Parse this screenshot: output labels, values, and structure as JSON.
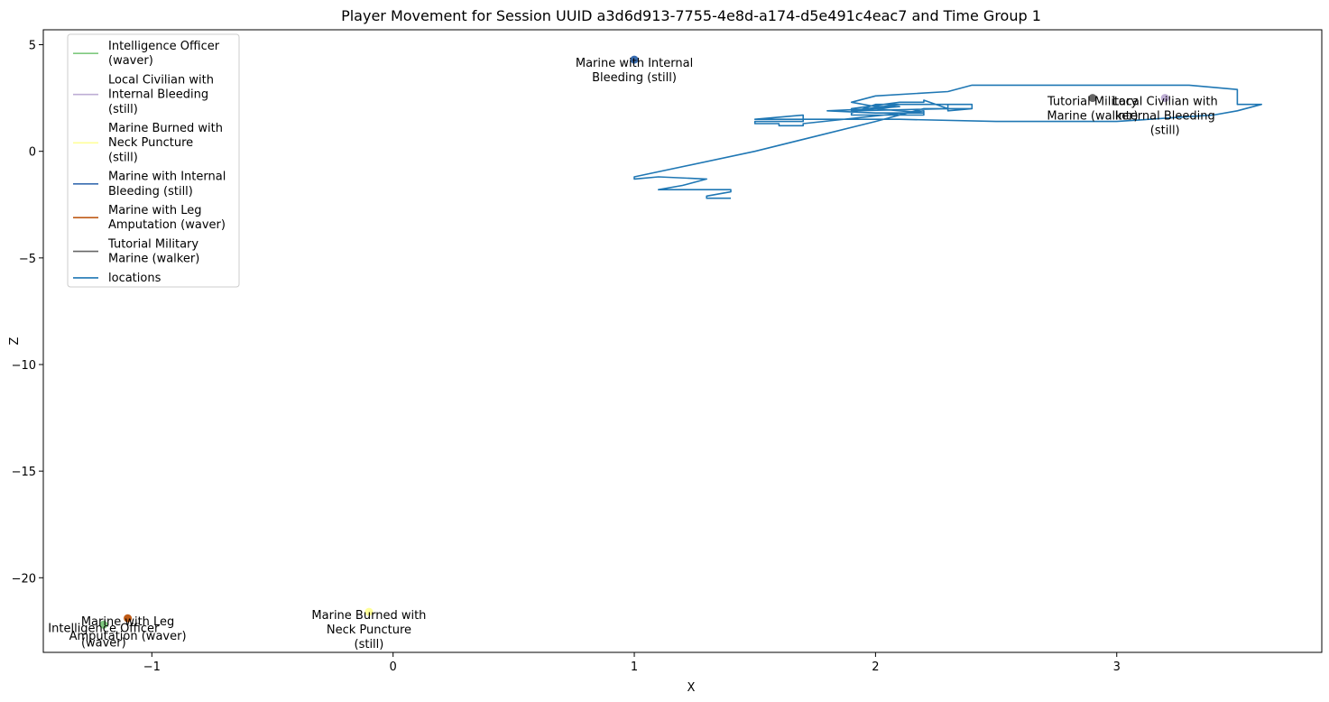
{
  "chart_data": {
    "type": "line",
    "title": "Player Movement for Session UUID a3d6d913-7755-4e8d-a174-d5e491c4eac7 and Time Group 1",
    "xlabel": "X",
    "ylabel": "Z",
    "xlim": [
      -1.45,
      3.85
    ],
    "ylim": [
      -23.5,
      5.7
    ],
    "xticks": [
      -1,
      0,
      1,
      2,
      3
    ],
    "yticks": [
      5,
      0,
      -5,
      -10,
      -15,
      -20
    ],
    "xtick_labels": [
      "−1",
      "0",
      "1",
      "2",
      "3"
    ],
    "ytick_labels": [
      "5",
      "0",
      "−5",
      "−10",
      "−15",
      "−20"
    ],
    "grid": false,
    "legend_position": "upper-left",
    "legend": [
      {
        "label": [
          "Intelligence Officer",
          "(waver)"
        ],
        "color": "#7fc97f"
      },
      {
        "label": [
          "Local Civilian with",
          "Internal Bleeding",
          "(still)"
        ],
        "color": "#beaed4"
      },
      {
        "label": [
          "Marine Burned with",
          "Neck Puncture",
          "(still)"
        ],
        "color": "#ffff99"
      },
      {
        "label": [
          "Marine with Internal",
          "Bleeding (still)"
        ],
        "color": "#386cb0"
      },
      {
        "label": [
          "Marine with Leg",
          "Amputation (waver)"
        ],
        "color": "#bf5b17"
      },
      {
        "label": [
          "Tutorial Military",
          "Marine (walker)"
        ],
        "color": "#666666"
      },
      {
        "label": [
          "locations"
        ],
        "color": "#1f77b4"
      }
    ],
    "points": [
      {
        "name": "Intelligence Officer (waver)",
        "x": -1.2,
        "y": -22.2,
        "color": "#7fc97f",
        "label": [
          "Intelligence Officer",
          "(waver)"
        ]
      },
      {
        "name": "Local Civilian with Internal Bleeding (still)",
        "x": 3.2,
        "y": 2.5,
        "color": "#beaed4",
        "label": [
          "Local Civilian with",
          "Internal Bleeding",
          "(still)"
        ]
      },
      {
        "name": "Marine Burned with Neck Puncture (still)",
        "x": -0.1,
        "y": -21.6,
        "color": "#ffff99",
        "label": [
          "Marine Burned with",
          "Neck Puncture",
          "(still)"
        ]
      },
      {
        "name": "Marine with Internal Bleeding (still)",
        "x": 1.0,
        "y": 4.3,
        "color": "#386cb0",
        "label": [
          "Marine with Internal",
          "Bleeding (still)"
        ]
      },
      {
        "name": "Marine with Leg Amputation (waver)",
        "x": -1.1,
        "y": -21.9,
        "color": "#bf5b17",
        "label": [
          "Marine with Leg",
          "Amputation (waver)"
        ]
      },
      {
        "name": "Tutorial Military Marine (walker)",
        "x": 2.9,
        "y": 2.5,
        "color": "#666666",
        "label": [
          "Tutorial Military",
          "Marine (walker)"
        ]
      }
    ],
    "series": [
      {
        "name": "locations",
        "color": "#1f77b4",
        "x": [
          1.4,
          1.3,
          1.3,
          1.4,
          1.4,
          1.1,
          1.2,
          1.3,
          1.1,
          1.0,
          1.0,
          1.0,
          1.5,
          2.0,
          2.1,
          2.2,
          2.4,
          2.4,
          2.1,
          1.9,
          1.9,
          2.1,
          2.2,
          2.2,
          2.3,
          2.3,
          2.4,
          2.4,
          2.0,
          1.9,
          1.9,
          2.2,
          2.2,
          2.0,
          1.8,
          2.0,
          2.2,
          2.2,
          1.7,
          1.7,
          1.6,
          1.6,
          1.5,
          1.5,
          1.7,
          1.7,
          1.5,
          1.6,
          1.6,
          1.7,
          1.9,
          2.1,
          2.5,
          3.0,
          3.4,
          3.5,
          3.6,
          3.5,
          3.5,
          3.3,
          2.4,
          2.3,
          2.0,
          1.9,
          2.0,
          2.1,
          1.9,
          2.3,
          2.3
        ],
        "y": [
          -2.2,
          -2.2,
          -2.1,
          -1.9,
          -1.8,
          -1.8,
          -1.6,
          -1.3,
          -1.2,
          -1.3,
          -1.3,
          -1.2,
          0.0,
          1.4,
          1.7,
          2.0,
          2.0,
          2.2,
          2.2,
          1.9,
          2.0,
          2.3,
          2.3,
          2.4,
          2.0,
          1.9,
          2.0,
          2.2,
          2.2,
          1.8,
          1.7,
          1.7,
          1.8,
          1.8,
          1.9,
          2.0,
          1.8,
          1.9,
          1.3,
          1.2,
          1.2,
          1.3,
          1.3,
          1.4,
          1.4,
          1.7,
          1.5,
          1.5,
          1.5,
          1.5,
          1.5,
          1.5,
          1.4,
          1.4,
          1.7,
          1.9,
          2.2,
          2.2,
          2.9,
          3.1,
          3.1,
          2.8,
          2.6,
          2.3,
          2.1,
          2.1,
          1.9,
          2.0,
          2.2
        ]
      }
    ]
  }
}
